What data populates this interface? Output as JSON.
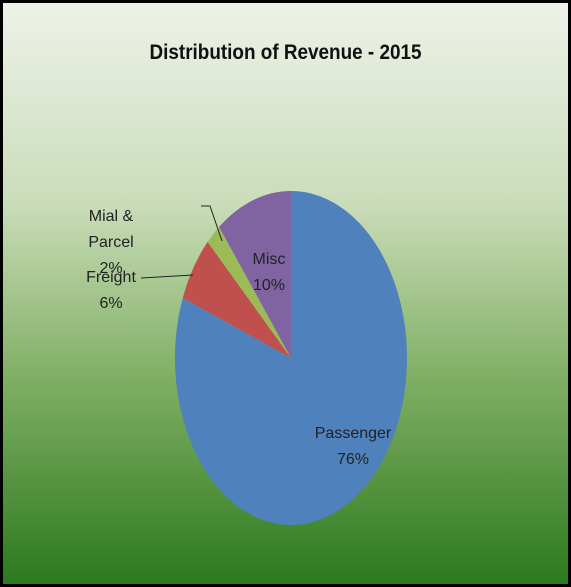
{
  "chart_data": {
    "type": "pie",
    "title": "Distribution of Revenue - 2015",
    "categories": [
      "Passenger",
      "Freight",
      "Mial & Parcel",
      "Misc"
    ],
    "values": [
      76,
      6,
      2,
      10
    ],
    "value_labels": [
      "76%",
      "6%",
      "2%",
      "10%"
    ],
    "colors": [
      "#4f81bd",
      "#c0504d",
      "#9bbb59",
      "#8064a2"
    ]
  }
}
